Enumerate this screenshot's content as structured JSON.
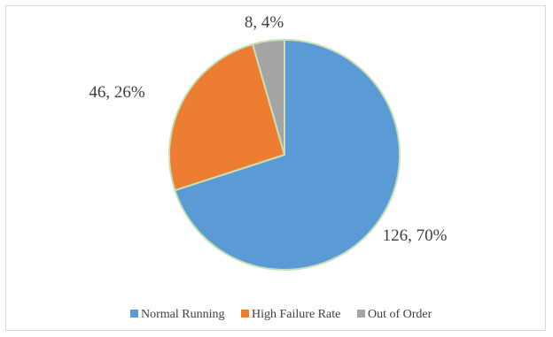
{
  "chart_data": {
    "type": "pie",
    "title": "",
    "categories": [
      "Normal Running",
      "High Failure Rate",
      "Out of Order"
    ],
    "values": [
      126,
      46,
      8
    ],
    "percent_labels": [
      "70%",
      "26%",
      "4%"
    ],
    "data_labels": [
      "126, 70%",
      "46, 26%",
      "8, 4%"
    ],
    "colors": [
      "#5b9bd5",
      "#ed7d31",
      "#a5a5a5"
    ],
    "slice_border_color": "#c6e0b4",
    "start_angle_deg": 0,
    "direction": "clockwise",
    "legend": {
      "position": "bottom",
      "entries": [
        "Normal Running",
        "High Failure Rate",
        "Out of Order"
      ]
    }
  }
}
